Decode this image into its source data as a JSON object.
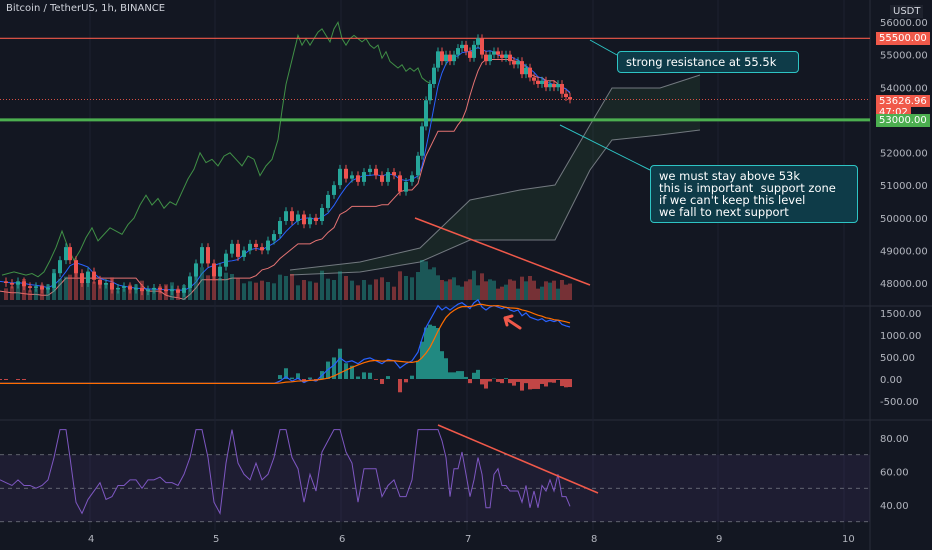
{
  "header": {
    "title": "Bitcoin / TetherUS, 1h, BINANCE",
    "currency": "USDT"
  },
  "price_axis": [
    "56000.00",
    "55000.00",
    "54000.00",
    "52000.00",
    "51000.00",
    "50000.00",
    "49000.00",
    "48000.00"
  ],
  "macd_axis": [
    "1500.00",
    "1000.00",
    "500.00",
    "0.00",
    "-500.00"
  ],
  "rsi_axis": [
    "80.00",
    "60.00",
    "40.00"
  ],
  "tags": {
    "resistance": "55500.00",
    "last_price": "53626.96",
    "countdown": "47:02",
    "support": "53000.00"
  },
  "x_axis": [
    "4",
    "5",
    "6",
    "7",
    "8",
    "9",
    "10"
  ],
  "annotations": {
    "resistance_note": "strong resistance at 55.5k",
    "support_note": "we must stay above 53k\nthis is important  support zone\nif we can't keep this level\nwe fall to next support"
  },
  "colors": {
    "bull": "#26a69a",
    "bear": "#ef5350",
    "resistance": "#f0594a",
    "support": "#4caf50",
    "macd": "#2962ff",
    "signal": "#ff6d00",
    "rsi": "#7e57c2",
    "ichimoku_green": "#4caf50"
  },
  "chart_data": {
    "type": "candlestick",
    "symbol": "Bitcoin / TetherUS",
    "interval": "1h",
    "exchange": "BINANCE",
    "x_ticks": [
      "4",
      "5",
      "6",
      "7",
      "8",
      "9",
      "10"
    ],
    "price_range": [
      47500,
      56300
    ],
    "levels": {
      "resistance": 55500,
      "support": 53000,
      "last": 53626.96
    },
    "price_path": [
      [
        0,
        48050
      ],
      [
        6,
        48000
      ],
      [
        12,
        47950
      ],
      [
        18,
        48050
      ],
      [
        24,
        47900
      ],
      [
        30,
        47850
      ],
      [
        36,
        47900
      ],
      [
        42,
        47800
      ],
      [
        48,
        47850
      ],
      [
        54,
        48300
      ],
      [
        60,
        48700
      ],
      [
        66,
        49100
      ],
      [
        70,
        48700
      ],
      [
        76,
        48300
      ],
      [
        82,
        48000
      ],
      [
        88,
        48350
      ],
      [
        94,
        48100
      ],
      [
        100,
        47950
      ],
      [
        106,
        48000
      ],
      [
        112,
        47800
      ],
      [
        118,
        47850
      ],
      [
        124,
        47900
      ],
      [
        130,
        47800
      ],
      [
        136,
        47850
      ],
      [
        142,
        47750
      ],
      [
        148,
        47800
      ],
      [
        154,
        47850
      ],
      [
        160,
        47800
      ],
      [
        166,
        47750
      ],
      [
        172,
        47800
      ],
      [
        178,
        47700
      ],
      [
        184,
        47850
      ],
      [
        190,
        48200
      ],
      [
        196,
        48600
      ],
      [
        202,
        49100
      ],
      [
        208,
        48600
      ],
      [
        214,
        48200
      ],
      [
        220,
        48500
      ],
      [
        226,
        48900
      ],
      [
        232,
        49200
      ],
      [
        238,
        48800
      ],
      [
        244,
        49000
      ],
      [
        250,
        49200
      ],
      [
        256,
        49100
      ],
      [
        262,
        49000
      ],
      [
        268,
        49300
      ],
      [
        274,
        49500
      ],
      [
        280,
        49900
      ],
      [
        286,
        50200
      ],
      [
        292,
        49900
      ],
      [
        298,
        50100
      ],
      [
        304,
        49800
      ],
      [
        310,
        50000
      ],
      [
        316,
        49900
      ],
      [
        322,
        50300
      ],
      [
        328,
        50700
      ],
      [
        334,
        51000
      ],
      [
        340,
        51500
      ],
      [
        346,
        51200
      ],
      [
        352,
        51300
      ],
      [
        358,
        51100
      ],
      [
        364,
        51400
      ],
      [
        370,
        51500
      ],
      [
        376,
        51300
      ],
      [
        382,
        51100
      ],
      [
        388,
        51400
      ],
      [
        394,
        51300
      ],
      [
        400,
        50800
      ],
      [
        406,
        51100
      ],
      [
        412,
        51300
      ],
      [
        418,
        51900
      ],
      [
        422,
        52800
      ],
      [
        426,
        53600
      ],
      [
        430,
        54100
      ],
      [
        434,
        54600
      ],
      [
        438,
        55100
      ],
      [
        442,
        54800
      ],
      [
        446,
        55000
      ],
      [
        450,
        54800
      ],
      [
        454,
        55000
      ],
      [
        458,
        55200
      ],
      [
        462,
        55300
      ],
      [
        466,
        55100
      ],
      [
        470,
        54900
      ],
      [
        474,
        55300
      ],
      [
        478,
        55500
      ],
      [
        482,
        55000
      ],
      [
        486,
        54800
      ],
      [
        490,
        55000
      ],
      [
        494,
        55100
      ],
      [
        498,
        55000
      ],
      [
        502,
        54900
      ],
      [
        506,
        55000
      ],
      [
        510,
        54800
      ],
      [
        514,
        54700
      ],
      [
        518,
        54800
      ],
      [
        522,
        54400
      ],
      [
        526,
        54600
      ],
      [
        530,
        54300
      ],
      [
        534,
        54200
      ],
      [
        538,
        54100
      ],
      [
        542,
        54200
      ],
      [
        546,
        54000
      ],
      [
        550,
        54100
      ],
      [
        554,
        54000
      ],
      [
        558,
        54100
      ],
      [
        562,
        53800
      ],
      [
        566,
        53700
      ],
      [
        570,
        53627
      ]
    ],
    "macd_range": [
      -700,
      1600
    ],
    "rsi_range": [
      30,
      90
    ],
    "rsi_bands": [
      70,
      50,
      30
    ]
  }
}
